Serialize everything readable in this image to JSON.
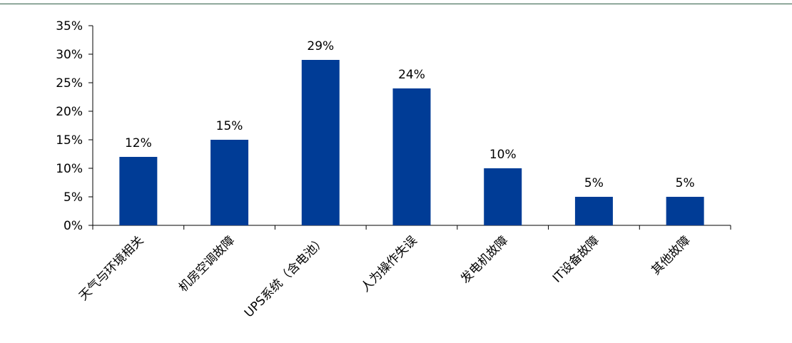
{
  "chart_data": {
    "type": "bar",
    "categories": [
      "天气与环境相关",
      "机房空调故障",
      "UPS系统（含电池）",
      "人为操作失误",
      "发电机故障",
      "IT设备故障",
      "其他故障"
    ],
    "values": [
      12,
      15,
      29,
      24,
      10,
      5,
      5
    ],
    "data_labels": [
      "12%",
      "15%",
      "29%",
      "24%",
      "10%",
      "5%",
      "5%"
    ],
    "y_ticks": [
      "0%",
      "5%",
      "10%",
      "15%",
      "20%",
      "25%",
      "30%",
      "35%"
    ],
    "ylim": [
      0,
      35
    ],
    "y_tick_step": 5,
    "title": "",
    "xlabel": "",
    "ylabel": "",
    "grid": false,
    "legend": "none",
    "bar_color": "#003c96",
    "rule_color": "#2f5e46"
  }
}
